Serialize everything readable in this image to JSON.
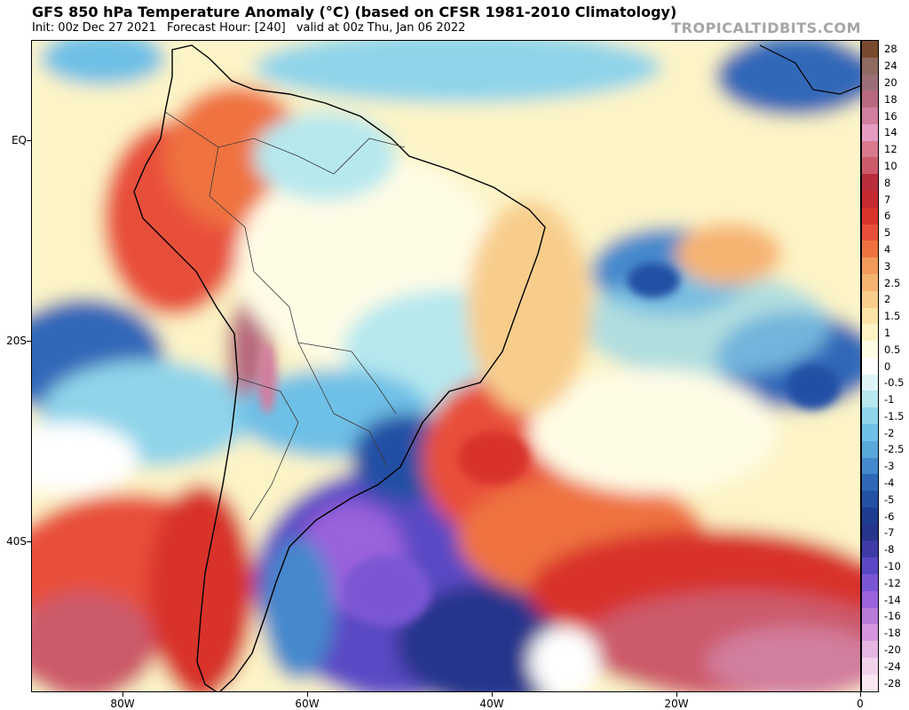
{
  "header": {
    "title": "GFS 850 hPa Temperature Anomaly (°C) (based on CFSR 1981-2010 Climatology)",
    "init": "Init: 00z Dec 27 2021",
    "forecast_hour": "Forecast Hour: [240]",
    "valid": "valid at 00z Thu, Jan 06 2022",
    "watermark": "TROPICALTIDBITS.COM"
  },
  "map": {
    "region": "South America and South Atlantic",
    "lon_range": [
      -90,
      0
    ],
    "lat_range": [
      10,
      -55
    ],
    "x_ticks": [
      "80W",
      "60W",
      "40W",
      "20W",
      "0"
    ],
    "y_ticks": [
      "EQ",
      "20S",
      "40S"
    ]
  },
  "legend": {
    "labels": [
      "28",
      "24",
      "20",
      "18",
      "16",
      "14",
      "12",
      "10",
      "8",
      "7",
      "6",
      "5",
      "4",
      "3",
      "2.5",
      "2",
      "1.5",
      "1",
      "0.5",
      "0",
      "-0.5",
      "-1",
      "-1.5",
      "-2",
      "-2.5",
      "-3",
      "-4",
      "-5",
      "-6",
      "-7",
      "-8",
      "-10",
      "-12",
      "-14",
      "-16",
      "-18",
      "-20",
      "-24",
      "-28"
    ],
    "colors": [
      "#7a4a2e",
      "#8e6a60",
      "#9c6f78",
      "#b8697e",
      "#d27e9e",
      "#e69cc0",
      "#d8798e",
      "#cc5a6a",
      "#b82e3c",
      "#c42a30",
      "#d8332c",
      "#e8503a",
      "#ef7240",
      "#f29a5c",
      "#f6b472",
      "#f8cd8c",
      "#fbe4a6",
      "#fdf4c6",
      "#fffce6",
      "#ffffff",
      "#dff4f6",
      "#b6e8ee",
      "#8fd4ea",
      "#6ec0e6",
      "#58a8dc",
      "#4489cc",
      "#3068b8",
      "#2450a4",
      "#1e3c90",
      "#27348c",
      "#3e3aa8",
      "#5a48c4",
      "#7a56d4",
      "#9a62dc",
      "#b87ad8",
      "#d496dc",
      "#e6b6e2",
      "#f2d2ea",
      "#f8e6f0"
    ]
  },
  "colors": {
    "coast": "#000000",
    "border": "#3a3a3a",
    "ocean_neutral": "#fdf7d3"
  }
}
